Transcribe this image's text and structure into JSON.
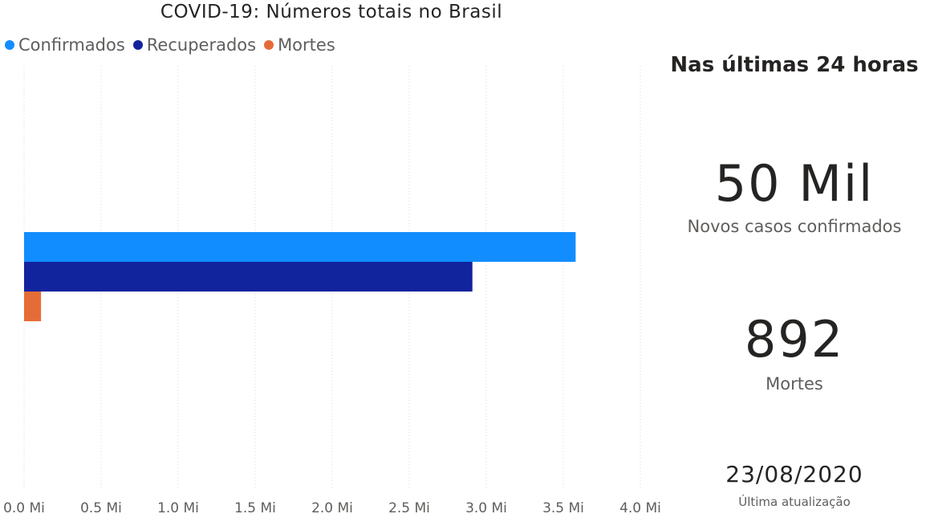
{
  "chart_data": {
    "type": "bar",
    "orientation": "horizontal",
    "title": "COVID-19: Números totais no Brasil",
    "series": [
      {
        "name": "Confirmados",
        "value": 3.58,
        "color": "#118dff"
      },
      {
        "name": "Recuperados",
        "value": 2.91,
        "color": "#12239e"
      },
      {
        "name": "Mortes",
        "value": 0.11,
        "color": "#e66c37"
      }
    ],
    "x_ticks": [
      "0.0 Mi",
      "0.5 Mi",
      "1.0 Mi",
      "1.5 Mi",
      "2.0 Mi",
      "2.5 Mi",
      "3.0 Mi",
      "3.5 Mi",
      "4.0 Mi"
    ],
    "xlim": [
      0,
      4
    ],
    "x_unit": "Mi",
    "grid": "vertical-dotted",
    "legend_position": "top-left"
  },
  "kpis": {
    "heading": "Nas últimas 24 horas",
    "new_cases_value": "50 Mil",
    "new_cases_label": "Novos casos confirmados",
    "deaths_value": "892",
    "deaths_label": "Mortes",
    "last_update_date": "23/08/2020",
    "last_update_label": "Última atualização"
  }
}
